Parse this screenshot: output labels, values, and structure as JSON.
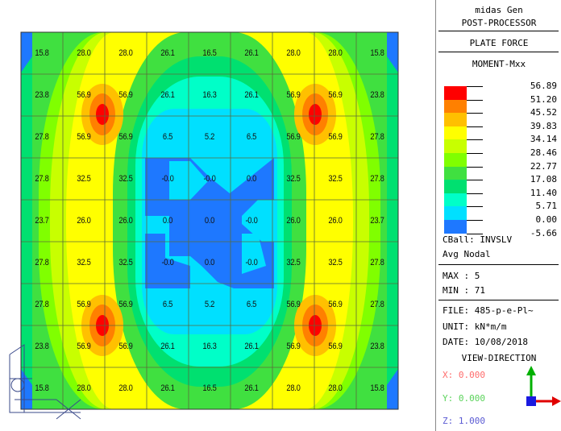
{
  "panel": {
    "app_name": "midas Gen",
    "mode": "POST-PROCESSOR",
    "result_type": "PLATE FORCE",
    "component": "MOMENT-Mxx",
    "legend_values": [
      "56.89",
      "51.20",
      "45.52",
      "39.83",
      "34.14",
      "28.46",
      "22.77",
      "17.08",
      "11.40",
      "5.71",
      "0.00",
      "-5.66"
    ],
    "legend_colors": [
      "#ff0000",
      "#ff8000",
      "#ffc000",
      "#ffff00",
      "#c8ff00",
      "#80ff00",
      "#40e040",
      "#00e070",
      "#00ffc8",
      "#00e0ff",
      "#1e78ff"
    ],
    "cball": "CBall: INVSLV",
    "avg": "Avg Nodal",
    "max": "MAX : 5",
    "min": "MIN : 71",
    "file": "FILE: 485-p-e-Pl~",
    "unit": "UNIT: kN*m/m",
    "date": "DATE: 10/08/2018",
    "view_direction": "VIEW-DIRECTION",
    "vx": "X: 0.000",
    "vy": "Y: 0.000",
    "vz": "Z: 1.000"
  },
  "grid": {
    "rows": [
      [
        "15.8",
        "28.0",
        "28.0",
        "26.1",
        "16.5",
        "26.1",
        "28.0",
        "28.0",
        "15.8"
      ],
      [
        "23.8",
        "56.9",
        "56.9",
        "26.1",
        "16.3",
        "26.1",
        "56.9",
        "56.9",
        "23.8"
      ],
      [
        "27.8",
        "56.9",
        "56.9",
        "6.5",
        "5.2",
        "6.5",
        "56.9",
        "56.9",
        "27.8"
      ],
      [
        "27.8",
        "32.5",
        "32.5",
        "-0.0",
        "-0.0",
        "0.0",
        "32.5",
        "32.5",
        "27.8"
      ],
      [
        "23.7",
        "26.0",
        "26.0",
        "0.0",
        "0.0",
        "-0.0",
        "26.0",
        "26.0",
        "23.7"
      ],
      [
        "27.8",
        "32.5",
        "32.5",
        "-0.0",
        "0.0",
        "-0.0",
        "32.5",
        "32.5",
        "27.8"
      ],
      [
        "27.8",
        "56.9",
        "56.9",
        "6.5",
        "5.2",
        "6.5",
        "56.9",
        "56.9",
        "27.8"
      ],
      [
        "23.8",
        "56.9",
        "56.9",
        "26.1",
        "16.3",
        "26.1",
        "56.9",
        "56.9",
        "23.8"
      ],
      [
        "15.8",
        "28.0",
        "28.0",
        "26.1",
        "16.5",
        "26.1",
        "28.0",
        "28.0",
        "15.8"
      ]
    ]
  }
}
